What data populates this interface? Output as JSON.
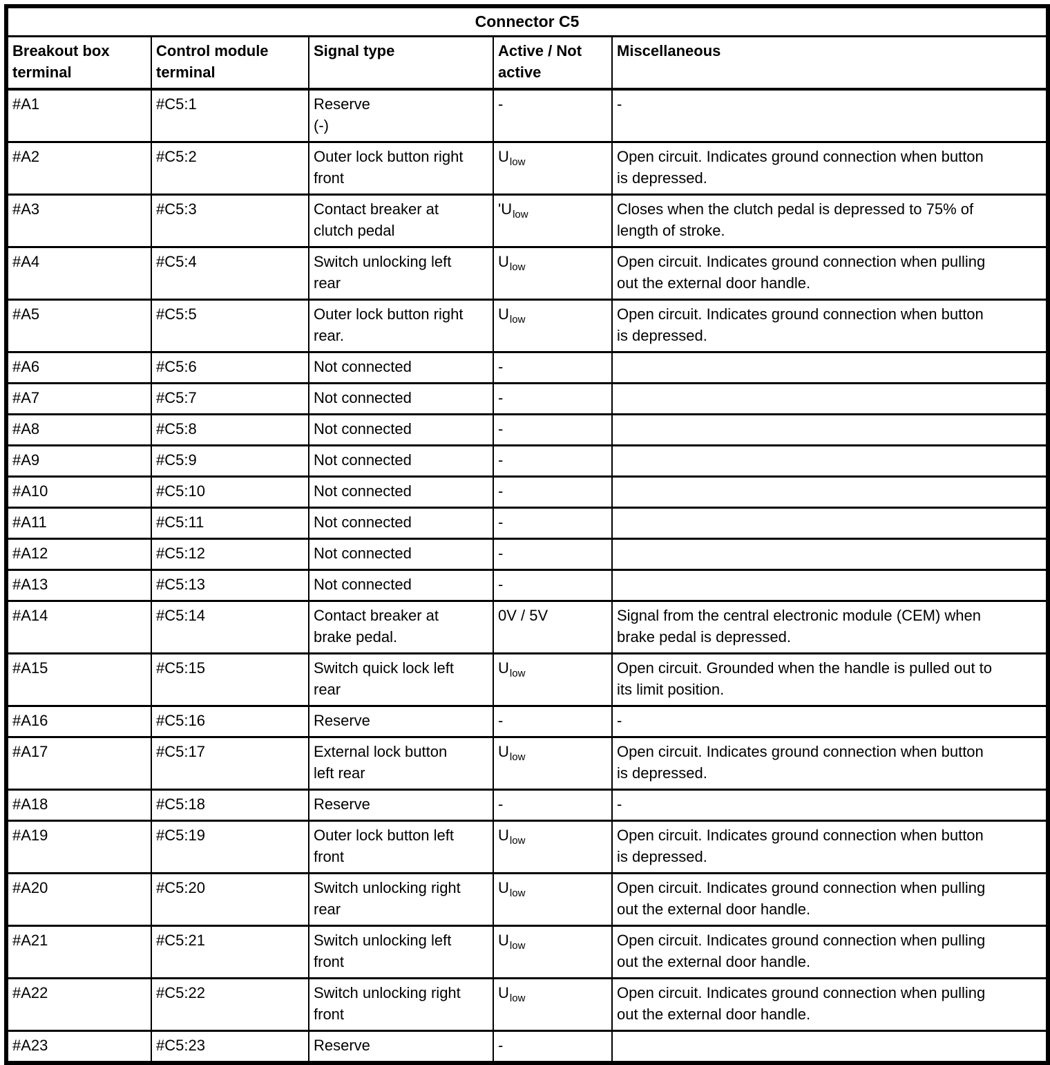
{
  "table": {
    "title": "Connector C5",
    "columns": [
      {
        "label": "Breakout box\nterminal"
      },
      {
        "label": "Control module\nterminal"
      },
      {
        "label": "Signal type"
      },
      {
        "label": "Active / Not\nactive"
      },
      {
        "label": "Miscellaneous"
      }
    ],
    "colors": {
      "border": "#000000",
      "text": "#000000",
      "background": "#ffffff"
    },
    "rows": [
      {
        "breakout": "#A1",
        "module": "#C5:1",
        "signal": "Reserve\n(-)",
        "active": "-",
        "misc": "-"
      },
      {
        "breakout": "#A2",
        "module": "#C5:2",
        "signal": "Outer lock button right\nfront",
        "active": "U_low",
        "misc": "Open circuit. Indicates ground connection when button\nis depressed."
      },
      {
        "breakout": "#A3",
        "module": "#C5:3",
        "signal": "Contact breaker at\nclutch pedal",
        "active": "'U_low",
        "misc": "Closes when the clutch pedal is depressed to 75% of\nlength of stroke."
      },
      {
        "breakout": "#A4",
        "module": "#C5:4",
        "signal": "Switch unlocking left\nrear",
        "active": "U_low",
        "misc": "Open circuit. Indicates ground connection when pulling\nout the external door handle."
      },
      {
        "breakout": "#A5",
        "module": "#C5:5",
        "signal": "Outer lock button right\nrear.",
        "active": "U_low",
        "misc": "Open circuit. Indicates ground connection when button\nis depressed."
      },
      {
        "breakout": "#A6",
        "module": "#C5:6",
        "signal": "Not connected",
        "active": "-",
        "misc": ""
      },
      {
        "breakout": "#A7",
        "module": "#C5:7",
        "signal": "Not connected",
        "active": "-",
        "misc": ""
      },
      {
        "breakout": "#A8",
        "module": "#C5:8",
        "signal": "Not connected",
        "active": "-",
        "misc": ""
      },
      {
        "breakout": "#A9",
        "module": "#C5:9",
        "signal": "Not connected",
        "active": "-",
        "misc": ""
      },
      {
        "breakout": "#A10",
        "module": "#C5:10",
        "signal": "Not connected",
        "active": "-",
        "misc": ""
      },
      {
        "breakout": "#A11",
        "module": "#C5:11",
        "signal": "Not connected",
        "active": "-",
        "misc": ""
      },
      {
        "breakout": "#A12",
        "module": "#C5:12",
        "signal": "Not connected",
        "active": "-",
        "misc": ""
      },
      {
        "breakout": "#A13",
        "module": "#C5:13",
        "signal": "Not connected",
        "active": "-",
        "misc": ""
      },
      {
        "breakout": "#A14",
        "module": "#C5:14",
        "signal": "Contact breaker at\nbrake pedal.",
        "active": "0V / 5V",
        "misc": "Signal from the central electronic module (CEM) when\nbrake pedal is depressed."
      },
      {
        "breakout": "#A15",
        "module": "#C5:15",
        "signal": "Switch quick lock left\nrear",
        "active": "U_low",
        "misc": "Open circuit. Grounded when the handle is pulled out to\nits limit position."
      },
      {
        "breakout": "#A16",
        "module": "#C5:16",
        "signal": "Reserve",
        "active": "-",
        "misc": "-"
      },
      {
        "breakout": "#A17",
        "module": "#C5:17",
        "signal": "External lock button\nleft rear",
        "active": "U_low",
        "misc": "Open circuit. Indicates ground connection when button\nis depressed."
      },
      {
        "breakout": "#A18",
        "module": "#C5:18",
        "signal": "Reserve",
        "active": "-",
        "misc": "-"
      },
      {
        "breakout": "#A19",
        "module": "#C5:19",
        "signal": "Outer lock button left\nfront",
        "active": "U_low",
        "misc": "Open circuit. Indicates ground connection when button\nis depressed."
      },
      {
        "breakout": "#A20",
        "module": "#C5:20",
        "signal": "Switch unlocking right\nrear",
        "active": "U_low",
        "misc": "Open circuit. Indicates ground connection when pulling\nout the external door handle."
      },
      {
        "breakout": "#A21",
        "module": "#C5:21",
        "signal": "Switch unlocking left\nfront",
        "active": "U_low",
        "misc": "Open circuit. Indicates ground connection when pulling\nout the external door handle."
      },
      {
        "breakout": "#A22",
        "module": "#C5:22",
        "signal": "Switch unlocking right\nfront",
        "active": "U_low",
        "misc": "Open circuit. Indicates ground connection when pulling\nout the external door handle."
      },
      {
        "breakout": "#A23",
        "module": "#C5:23",
        "signal": "Reserve",
        "active": "-",
        "misc": ""
      }
    ]
  }
}
